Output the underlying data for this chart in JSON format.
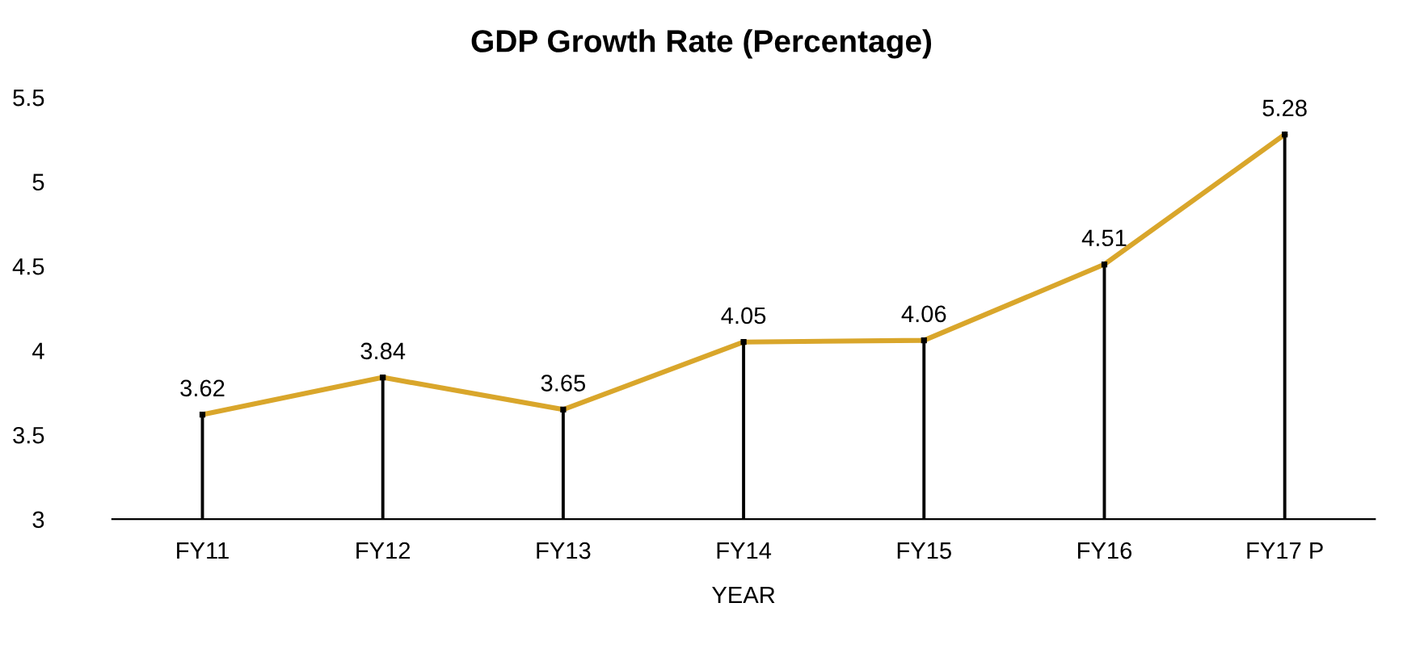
{
  "chart_data": {
    "type": "line",
    "title": "GDP Growth Rate (Percentage)",
    "xlabel": "YEAR",
    "categories": [
      "FY11",
      "FY12",
      "FY13",
      "FY14",
      "FY15",
      "FY16",
      "FY17 P"
    ],
    "series": [
      {
        "color": "#d9a62b",
        "values": [
          3.62,
          3.84,
          3.65,
          4.05,
          4.06,
          4.51,
          5.28
        ]
      },
      {
        "type": "lollipop",
        "color": "#000000",
        "marker": "square",
        "values": [
          3.62,
          3.84,
          3.65,
          4.05,
          4.06,
          4.51,
          5.28
        ],
        "value_labels": [
          null,
          null,
          null,
          null,
          null,
          null,
          null
        ]
      }
    ],
    "ylim": [
      3,
      5.5
    ],
    "yticks": [
      3,
      3.5,
      4,
      4.5,
      5,
      5.5
    ],
    "data_labels": true,
    "marker": "none",
    "line_style": "solid"
  }
}
